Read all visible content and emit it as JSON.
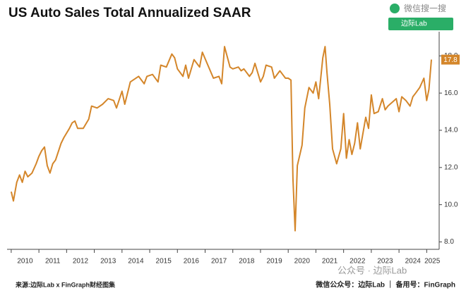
{
  "chart_data": {
    "type": "line",
    "title": "US Auto Sales Total Annualized SAAR",
    "series": [
      {
        "name": "US Auto Sales Total Annualized SAAR",
        "color": "#d4862a",
        "x": [
          2010.0,
          2010.08,
          2010.2,
          2010.3,
          2010.4,
          2010.5,
          2010.6,
          2010.75,
          2010.9,
          2011.0,
          2011.1,
          2011.2,
          2011.3,
          2011.4,
          2011.5,
          2011.6,
          2011.8,
          2011.9,
          2012.1,
          2012.2,
          2012.3,
          2012.4,
          2012.6,
          2012.8,
          2012.9,
          2013.1,
          2013.3,
          2013.5,
          2013.7,
          2013.8,
          2014.0,
          2014.1,
          2014.3,
          2014.4,
          2014.6,
          2014.8,
          2014.9,
          2015.1,
          2015.3,
          2015.4,
          2015.6,
          2015.8,
          2015.9,
          2016.0,
          2016.2,
          2016.3,
          2016.4,
          2016.6,
          2016.8,
          2016.9,
          2017.1,
          2017.3,
          2017.5,
          2017.6,
          2017.7,
          2017.9,
          2018.0,
          2018.2,
          2018.3,
          2018.4,
          2018.6,
          2018.7,
          2018.8,
          2019.0,
          2019.1,
          2019.2,
          2019.4,
          2019.5,
          2019.7,
          2019.8,
          2019.9,
          2020.0,
          2020.1,
          2020.17,
          2020.25,
          2020.33,
          2020.5,
          2020.6,
          2020.75,
          2020.9,
          2021.0,
          2021.1,
          2021.25,
          2021.33,
          2021.4,
          2021.5,
          2021.6,
          2021.75,
          2021.9,
          2022.0,
          2022.1,
          2022.2,
          2022.3,
          2022.4,
          2022.5,
          2022.6,
          2022.8,
          2022.9,
          2023.0,
          2023.1,
          2023.25,
          2023.4,
          2023.5,
          2023.6,
          2023.75,
          2023.9,
          2024.0,
          2024.1,
          2024.25,
          2024.4,
          2024.5,
          2024.6,
          2024.75,
          2024.9,
          2025.0,
          2025.08,
          2025.17
        ],
        "values": [
          10.7,
          10.2,
          11.2,
          11.6,
          11.2,
          11.8,
          11.5,
          11.7,
          12.2,
          12.6,
          12.9,
          13.1,
          12.1,
          11.7,
          12.2,
          12.4,
          13.3,
          13.6,
          14.1,
          14.4,
          14.5,
          14.1,
          14.1,
          14.6,
          15.3,
          15.2,
          15.4,
          15.7,
          15.6,
          15.2,
          16.1,
          15.4,
          16.6,
          16.7,
          16.9,
          16.5,
          16.9,
          17.0,
          16.6,
          17.5,
          17.4,
          18.1,
          17.9,
          17.3,
          16.9,
          17.5,
          16.8,
          17.8,
          17.4,
          18.2,
          17.5,
          16.8,
          16.9,
          16.5,
          18.5,
          17.4,
          17.3,
          17.4,
          17.2,
          17.3,
          16.9,
          17.1,
          17.6,
          16.6,
          16.9,
          17.5,
          17.4,
          16.8,
          17.2,
          17.0,
          16.8,
          16.8,
          16.7,
          11.4,
          8.6,
          12.1,
          13.2,
          15.2,
          16.3,
          16.0,
          16.6,
          15.7,
          17.9,
          18.5,
          17.1,
          15.4,
          13.0,
          12.2,
          13.0,
          14.9,
          12.5,
          13.5,
          12.7,
          13.3,
          14.4,
          13.0,
          14.7,
          14.1,
          15.9,
          14.9,
          15.0,
          15.7,
          15.1,
          15.3,
          15.5,
          15.7,
          15.0,
          15.8,
          15.6,
          15.3,
          15.8,
          16.0,
          16.3,
          16.8,
          15.6,
          16.2,
          17.8
        ]
      }
    ],
    "xlim": [
      2009.85,
      2025.45
    ],
    "xticks": [
      {
        "value": 2010.5,
        "label": "2010"
      },
      {
        "value": 2011.5,
        "label": "2011"
      },
      {
        "value": 2012.5,
        "label": "2012"
      },
      {
        "value": 2013.5,
        "label": "2013"
      },
      {
        "value": 2014.5,
        "label": "2014"
      },
      {
        "value": 2015.5,
        "label": "2015"
      },
      {
        "value": 2016.5,
        "label": "2016"
      },
      {
        "value": 2017.5,
        "label": "2017"
      },
      {
        "value": 2018.5,
        "label": "2018"
      },
      {
        "value": 2019.5,
        "label": "2019"
      },
      {
        "value": 2020.5,
        "label": "2020"
      },
      {
        "value": 2021.5,
        "label": "2021"
      },
      {
        "value": 2022.5,
        "label": "2022"
      },
      {
        "value": 2023.5,
        "label": "2023"
      },
      {
        "value": 2024.5,
        "label": "2024"
      },
      {
        "value": 2025.2,
        "label": "2025"
      }
    ],
    "ylim": [
      7.6,
      19.3
    ],
    "yticks": [
      {
        "value": 8,
        "label": "8.0"
      },
      {
        "value": 10,
        "label": "10.0"
      },
      {
        "value": 12,
        "label": "12.0"
      },
      {
        "value": 14,
        "label": "14.0"
      },
      {
        "value": 16,
        "label": "16.0"
      },
      {
        "value": 18,
        "label": "18.0"
      }
    ],
    "grid": false
  },
  "watermark": {
    "search": "微信搜一搜",
    "brand": "边际Lab",
    "overlay": "公众号 · 边际Lab"
  },
  "footer": {
    "source": "来源:边际Lab x FinGraph财经图集",
    "account": "微信公众号：边际Lab ｜ 备用号：FinGraph"
  }
}
